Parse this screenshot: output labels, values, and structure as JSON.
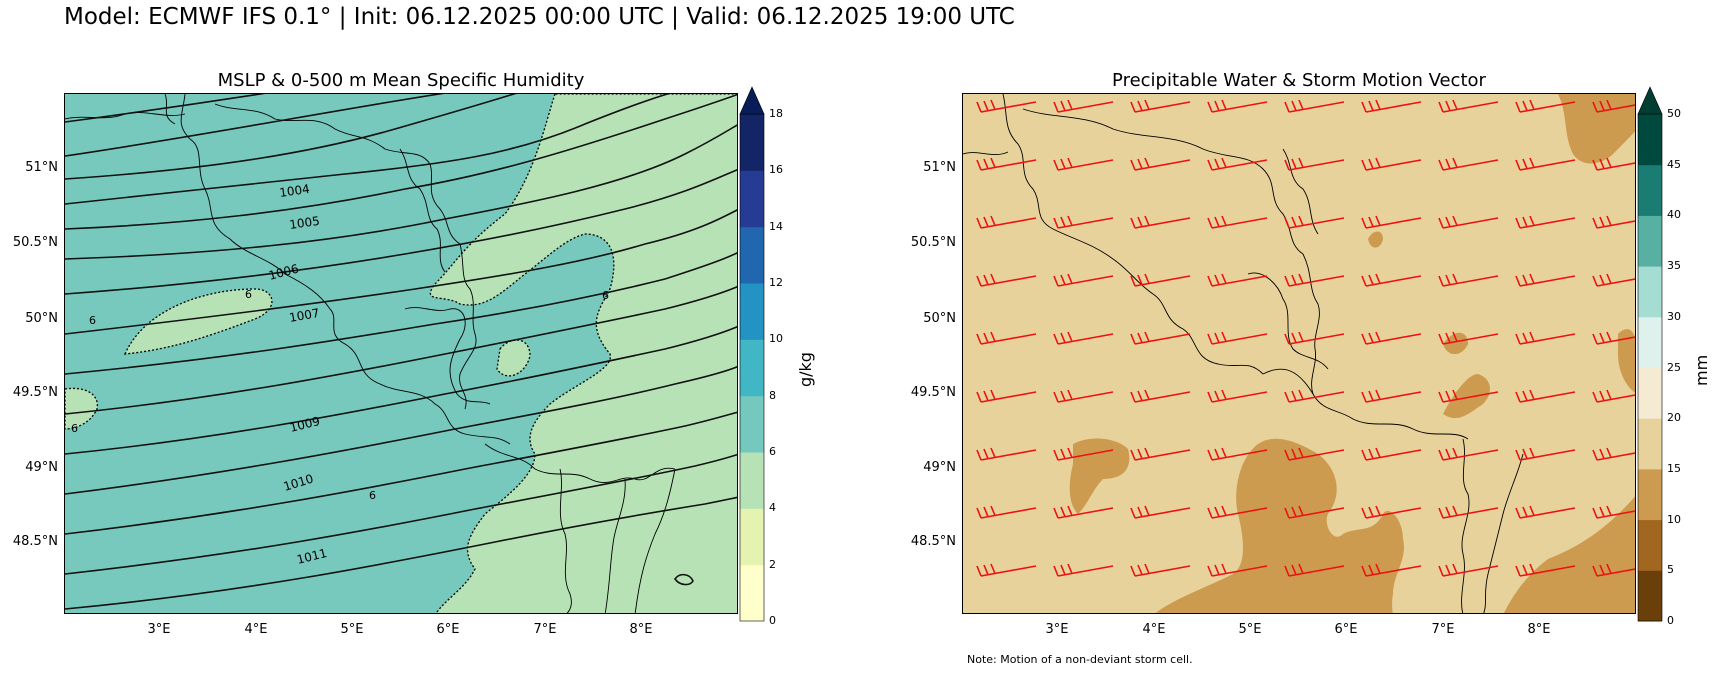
{
  "title": "Model: ECMWF IFS 0.1° | Init: 06.12.2025 00:00 UTC | Valid: 06.12.2025 19:00 UTC",
  "left_panel": {
    "title": "MSLP & 0-500 m Mean Specific Humidity",
    "lat_labels": [
      "51°N",
      "50.5°N",
      "50°N",
      "49.5°N",
      "49°N",
      "48.5°N"
    ],
    "lon_labels": [
      "3°E",
      "4°E",
      "5°E",
      "6°E",
      "7°E",
      "8°E"
    ],
    "isobar_labels": [
      "1004",
      "1005",
      "1006",
      "1007",
      "1009",
      "1010",
      "1011"
    ],
    "humidity_labels": [
      "6",
      "6",
      "6",
      "6",
      "6"
    ],
    "colorbar": {
      "label": "g/kg",
      "ticks": [
        "0",
        "2",
        "4",
        "6",
        "8",
        "10",
        "12",
        "14",
        "16",
        "18"
      ],
      "colors": [
        "#ffffcc",
        "#e4f4b0",
        "#b6e2b6",
        "#74c8bd",
        "#41b6c4",
        "#2393c3",
        "#2167b0",
        "#253b94",
        "#132566"
      ],
      "extend_color": "#081d58"
    },
    "colors": {
      "moist_fill": "#76c9bc",
      "dry_fill": "#b6e2b6"
    }
  },
  "right_panel": {
    "title": "Precipitable Water & Storm Motion Vector",
    "lat_labels": [
      "51°N",
      "50.5°N",
      "50°N",
      "49.5°N",
      "49°N",
      "48.5°N"
    ],
    "lon_labels": [
      "3°E",
      "4°E",
      "5°E",
      "6°E",
      "7°E",
      "8°E"
    ],
    "colorbar": {
      "label": "mm",
      "ticks": [
        "0",
        "5",
        "10",
        "15",
        "20",
        "25",
        "30",
        "35",
        "40",
        "45",
        "50"
      ],
      "colors": [
        "#6b3f09",
        "#a1661f",
        "#cd9b4f",
        "#e8d29b",
        "#f5ebd3",
        "#dff1ed",
        "#a6ddd2",
        "#58b0a3",
        "#1a7c73",
        "#00493e"
      ],
      "extend_color": "#003d32"
    },
    "colors": {
      "base_fill": "#e8d29b",
      "low_fill": "#cd9b4f",
      "barb": "#ee1111"
    },
    "note": "Note: Motion of a non-deviant storm cell."
  }
}
